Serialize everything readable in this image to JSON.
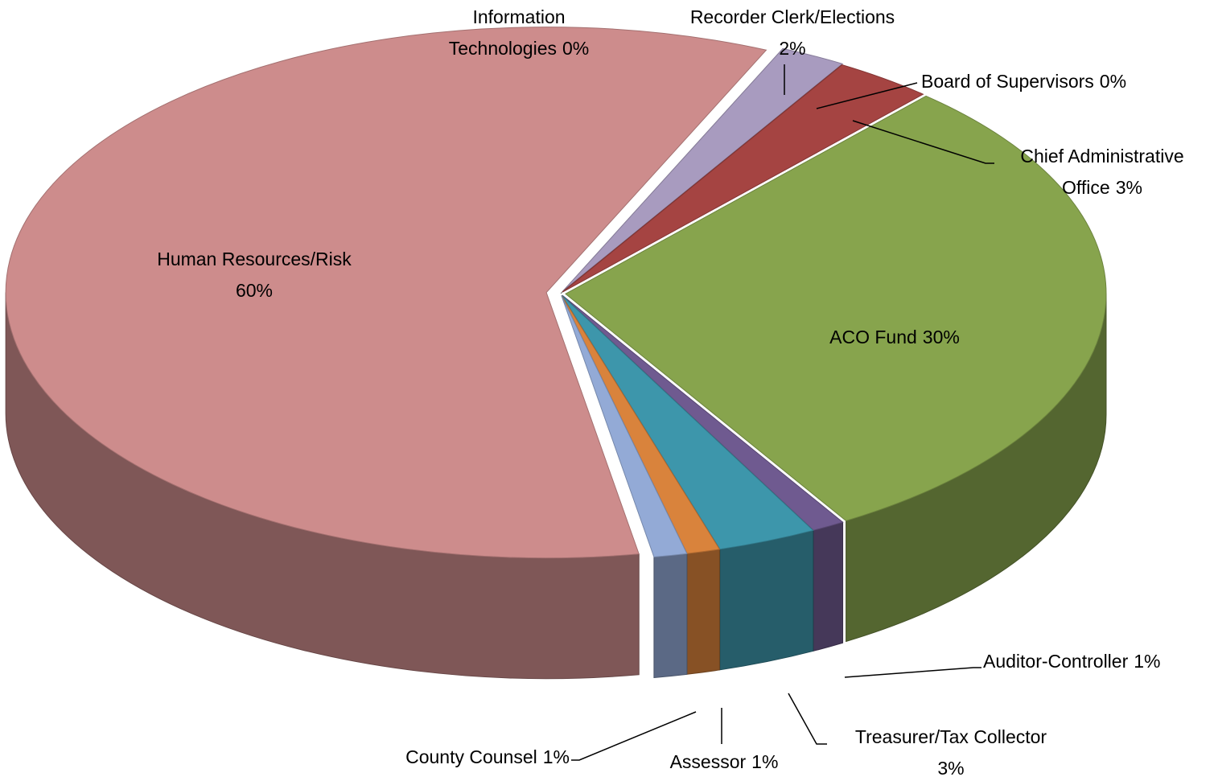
{
  "chart_data": {
    "type": "pie3d",
    "categories": [
      "Information Technologies",
      "Recorder Clerk/Elections",
      "Board of Supervisors",
      "Chief Administrative Office",
      "ACO Fund",
      "Auditor-Controller",
      "Treasurer/Tax Collector",
      "Assessor",
      "County Counsel",
      "Human Resources/Risk"
    ],
    "values": [
      0,
      2,
      0,
      3,
      30,
      1,
      3,
      1,
      1,
      60
    ],
    "value_labels": [
      "0%",
      "2%",
      "0%",
      "3%",
      "30%",
      "1%",
      "3%",
      "1%",
      "1%",
      "60%"
    ],
    "colors": [
      "#8c8c8c",
      "#a89bbf",
      "#8f3a38",
      "#a54442",
      "#87a44d",
      "#6f5a90",
      "#3d96ab",
      "#d9833c",
      "#93aad6",
      "#cd8c8c"
    ]
  }
}
